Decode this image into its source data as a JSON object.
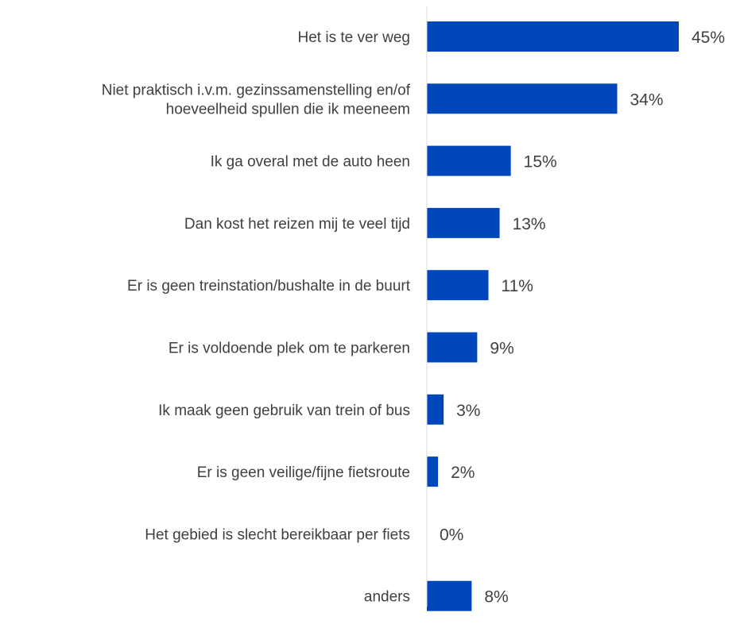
{
  "chart_data": {
    "type": "bar",
    "orientation": "horizontal",
    "categories": [
      [
        "Het is te ver weg"
      ],
      [
        "Niet praktisch i.v.m. gezinssamenstelling en/of",
        "hoeveelheid spullen die ik meeneem"
      ],
      [
        "Ik ga overal met de auto heen"
      ],
      [
        "Dan kost het reizen mij te veel tijd"
      ],
      [
        "Er is geen treinstation/bushalte in de buurt"
      ],
      [
        "Er is voldoende plek om te parkeren"
      ],
      [
        "Ik maak geen gebruik van trein of bus"
      ],
      [
        "Er is geen veilige/fijne fietsroute"
      ],
      [
        "Het gebied is slecht bereikbaar per fiets"
      ],
      [
        "anders"
      ]
    ],
    "values": [
      45,
      34,
      15,
      13,
      11,
      9,
      3,
      2,
      0,
      8
    ],
    "value_labels": [
      "45%",
      "34%",
      "15%",
      "13%",
      "11%",
      "9%",
      "3%",
      "2%",
      "0%",
      "8%"
    ],
    "unit": "%",
    "title": "",
    "xlabel": "",
    "ylabel": "",
    "xlim": [
      0,
      56
    ],
    "grid": false,
    "legend": "none",
    "bar_color": "#0047BB",
    "axis_color": "#D9D9D9",
    "text_color": "#404040"
  }
}
